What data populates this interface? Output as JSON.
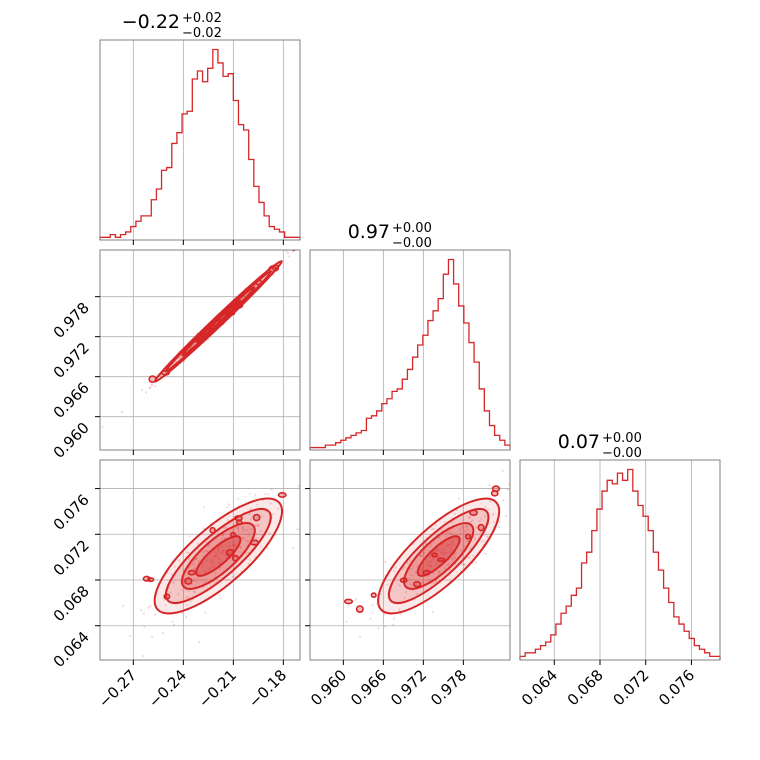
{
  "chart_data": {
    "type": "corner",
    "color": "#d62728",
    "parameters": [
      {
        "title_value": "−0.22",
        "title_plus": "+0.02",
        "title_minus": "−0.02",
        "range": [
          -0.29,
          -0.17
        ],
        "ticks": [
          -0.27,
          -0.24,
          -0.21,
          -0.18
        ],
        "tick_labels": [
          "−0.27",
          "−0.24",
          "−0.21",
          "−0.18"
        ],
        "center": -0.219,
        "sigma": 0.016
      },
      {
        "title_value": "0.97",
        "title_plus": "+0.00",
        "title_minus": "−0.00",
        "range": [
          0.955,
          0.985
        ],
        "ticks": [
          0.96,
          0.966,
          0.972,
          0.978
        ],
        "tick_labels": [
          "0.960",
          "0.966",
          "0.972",
          "0.978"
        ],
        "center": 0.9743,
        "sigma": 0.0038
      },
      {
        "title_value": "0.07",
        "title_plus": "+0.00",
        "title_minus": "−0.00",
        "range": [
          0.061,
          0.0785
        ],
        "ticks": [
          0.064,
          0.068,
          0.072,
          0.076
        ],
        "tick_labels": [
          "0.064",
          "0.068",
          "0.072",
          "0.076"
        ],
        "center": 0.0701,
        "sigma": 0.0021
      }
    ],
    "histograms": [
      [
        1,
        1,
        2,
        1,
        2,
        3,
        5,
        7,
        9,
        9,
        15,
        19,
        26,
        27,
        36,
        40,
        47,
        48,
        60,
        63,
        59,
        64,
        71,
        66,
        61,
        62,
        52,
        43,
        41,
        30,
        20,
        14,
        9,
        5,
        4,
        3,
        1,
        1,
        1
      ],
      [
        1,
        1,
        1,
        2,
        2,
        3,
        4,
        5,
        6,
        7,
        8,
        13,
        14,
        16,
        19,
        21,
        24,
        25,
        29,
        33,
        38,
        43,
        47,
        53,
        57,
        62,
        72,
        78,
        68,
        59,
        52,
        44,
        36,
        25,
        16,
        10,
        6,
        4,
        2
      ],
      [
        1,
        2,
        2,
        3,
        4,
        5,
        7,
        10,
        13,
        15,
        18,
        20,
        27,
        30,
        36,
        42,
        47,
        50,
        49,
        52,
        50,
        53,
        47,
        43,
        40,
        36,
        30,
        25,
        20,
        16,
        12,
        10,
        8,
        6,
        4,
        3,
        2,
        1,
        1
      ]
    ],
    "correlations": {
      "1_0": 0.995,
      "2_0": 0.8,
      "2_1": 0.8
    },
    "grid": true
  }
}
